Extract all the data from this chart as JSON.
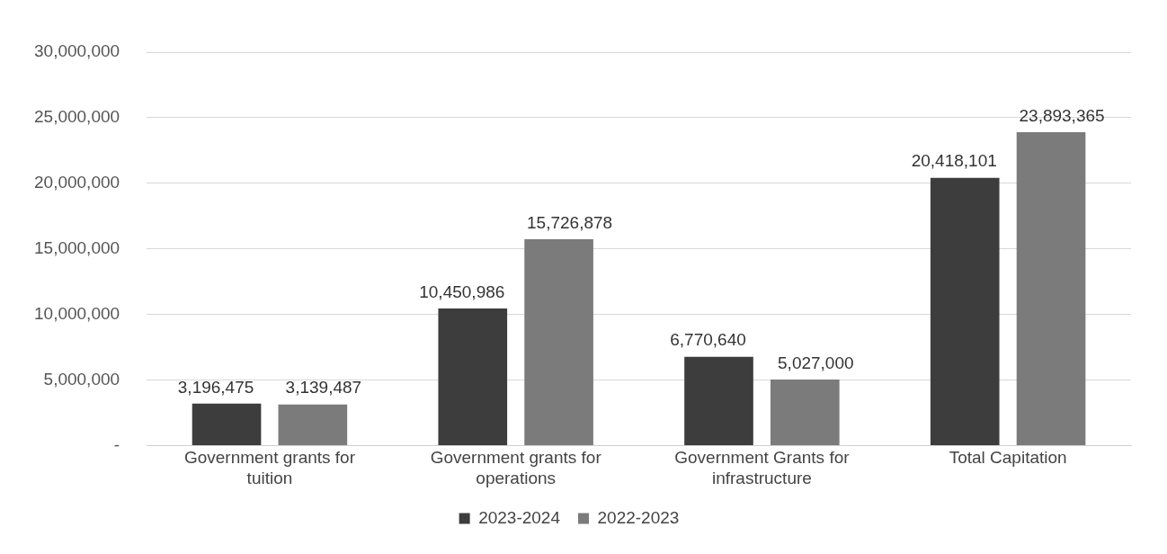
{
  "chart_data": {
    "type": "bar",
    "categories": [
      "Government grants for tuition",
      "Government grants for operations",
      "Government Grants for infrastructure",
      "Total Capitation"
    ],
    "series": [
      {
        "name": "2023-2024",
        "color": "#3d3d3d",
        "values": [
          3196475,
          10450986,
          6770640,
          20418101
        ],
        "value_labels": [
          "3,196,475",
          "10,450,986",
          "6,770,640",
          "20,418,101"
        ]
      },
      {
        "name": "2022-2023",
        "color": "#7b7b7b",
        "values": [
          3139487,
          15726878,
          5027000,
          23893365
        ],
        "value_labels": [
          "3,139,487",
          "15,726,878",
          "5,027,000",
          "23,893,365"
        ]
      }
    ],
    "ylim": [
      0,
      30000000
    ],
    "yticks": [
      {
        "value": 0,
        "label": "-"
      },
      {
        "value": 5000000,
        "label": "5,000,000"
      },
      {
        "value": 10000000,
        "label": "10,000,000"
      },
      {
        "value": 15000000,
        "label": "15,000,000"
      },
      {
        "value": 20000000,
        "label": "20,000,000"
      },
      {
        "value": 25000000,
        "label": "25,000,000"
      },
      {
        "value": 30000000,
        "label": "30,000,000"
      }
    ],
    "grid": "y",
    "legend": "bottom"
  }
}
